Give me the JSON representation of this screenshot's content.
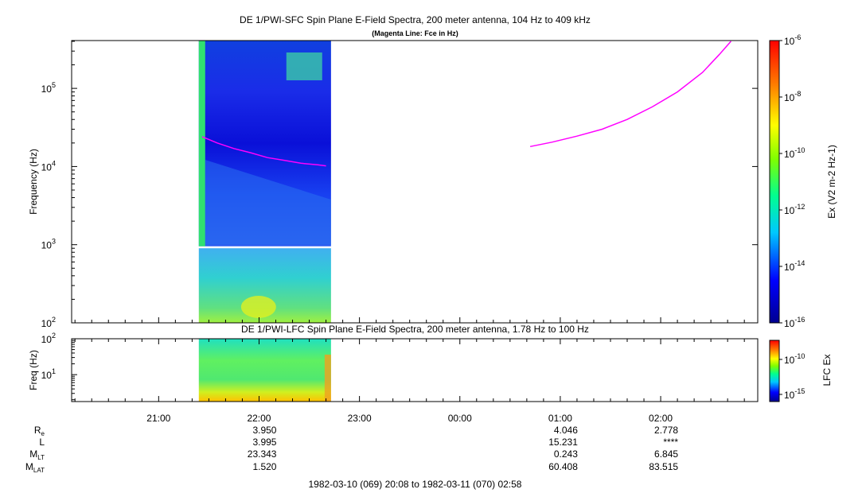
{
  "colors": {
    "fce_line": "#ff00ff",
    "frame": "#000000",
    "background": "#ffffff"
  },
  "top_title": "DE 1/PWI-SFC  Spin Plane E-Field Spectra, 200 meter antenna, 104 Hz to 409 kHz",
  "top_subtitle": "(Magenta Line: Fce in Hz)",
  "bottom_title": "DE 1/PWI-LFC  Spin Plane E-Field Spectra, 200 meter antenna, 1.78 Hz to 100 Hz",
  "time_range": "1982-03-10 (069) 20:08 to 1982-03-11 (070) 02:58",
  "ephemeris": {
    "labels": [
      {
        "main": "R",
        "sub": "e"
      },
      {
        "main": "L",
        "sub": ""
      },
      {
        "main": "M",
        "sub": "LT"
      },
      {
        "main": "M",
        "sub": "LAT"
      }
    ],
    "columns": [
      {
        "time": "22:00",
        "values": [
          "3.950",
          "3.995",
          "23.343",
          "1.520"
        ]
      },
      {
        "time": "01:00",
        "values": [
          "4.046",
          "15.231",
          "0.243",
          "60.408"
        ]
      },
      {
        "time": "02:00",
        "values": [
          "2.778",
          "****",
          "6.845",
          "83.515"
        ]
      }
    ]
  },
  "chart_data": [
    {
      "type": "heatmap",
      "panel": "PWI-SFC",
      "title": "DE 1/PWI-SFC  Spin Plane E-Field Spectra, 200 meter antenna, 104 Hz to 409 kHz",
      "subtitle": "(Magenta Line: Fce in Hz)",
      "ylabel": "Frequency (Hz)",
      "y_scale": "log",
      "ylim": [
        100,
        409000
      ],
      "y_ticks": [
        {
          "value": 100,
          "base": "10",
          "exp": "2"
        },
        {
          "value": 1000,
          "base": "10",
          "exp": "3"
        },
        {
          "value": 10000,
          "base": "10",
          "exp": "4"
        },
        {
          "value": 100000,
          "base": "10",
          "exp": "5"
        }
      ],
      "x_range": [
        "20:08",
        "02:58"
      ],
      "data_coverage": [
        [
          "21:24",
          "22:43"
        ]
      ],
      "colorbar": {
        "label": "Ex (V2 m-2 Hz-1)",
        "scale": "log",
        "range": [
          1e-16,
          1e-06
        ],
        "ticks": [
          {
            "value": 1e-06,
            "base": "10",
            "exp": "-6"
          },
          {
            "value": 1e-08,
            "base": "10",
            "exp": "-8"
          },
          {
            "value": 1e-10,
            "base": "10",
            "exp": "-10"
          },
          {
            "value": 1e-12,
            "base": "10",
            "exp": "-12"
          },
          {
            "value": 1e-14,
            "base": "10",
            "exp": "-14"
          },
          {
            "value": 1e-16,
            "base": "10",
            "exp": "-16"
          }
        ]
      },
      "series": [
        {
          "name": "Fce in Hz",
          "color": "#ff00ff",
          "segments": [
            [
              {
                "t": "21:26",
                "f": 24000
              },
              {
                "t": "21:35",
                "f": 20000
              },
              {
                "t": "21:45",
                "f": 17000
              },
              {
                "t": "21:55",
                "f": 15000
              },
              {
                "t": "22:05",
                "f": 13000
              },
              {
                "t": "22:15",
                "f": 12000
              },
              {
                "t": "22:25",
                "f": 11000
              },
              {
                "t": "22:35",
                "f": 10500
              },
              {
                "t": "22:40",
                "f": 10200
              }
            ],
            [
              {
                "t": "00:42",
                "f": 18000
              },
              {
                "t": "00:55",
                "f": 20500
              },
              {
                "t": "01:10",
                "f": 24500
              },
              {
                "t": "01:25",
                "f": 30000
              },
              {
                "t": "01:40",
                "f": 40000
              },
              {
                "t": "01:55",
                "f": 58000
              },
              {
                "t": "02:10",
                "f": 90000
              },
              {
                "t": "02:25",
                "f": 160000
              },
              {
                "t": "02:35",
                "f": 270000
              },
              {
                "t": "02:42",
                "f": 400000
              }
            ]
          ]
        }
      ]
    },
    {
      "type": "heatmap",
      "panel": "PWI-LFC",
      "title": "DE 1/PWI-LFC  Spin Plane E-Field Spectra, 200 meter antenna, 1.78 Hz to 100 Hz",
      "ylabel": "Freq (Hz)",
      "y_scale": "log",
      "ylim": [
        1.78,
        100
      ],
      "y_ticks": [
        {
          "value": 10,
          "base": "10",
          "exp": "1"
        },
        {
          "value": 100,
          "base": "10",
          "exp": "2"
        }
      ],
      "x_range": [
        "20:08",
        "02:58"
      ],
      "x_ticks": [
        "21:00",
        "22:00",
        "23:00",
        "00:00",
        "01:00",
        "02:00"
      ],
      "data_coverage": [
        [
          "21:24",
          "22:43"
        ]
      ],
      "colorbar": {
        "label": "LFC Ex",
        "scale": "log",
        "ticks": [
          {
            "value": 1e-10,
            "base": "10",
            "exp": "-10"
          },
          {
            "value": 1e-15,
            "base": "10",
            "exp": "-15"
          }
        ]
      }
    }
  ]
}
